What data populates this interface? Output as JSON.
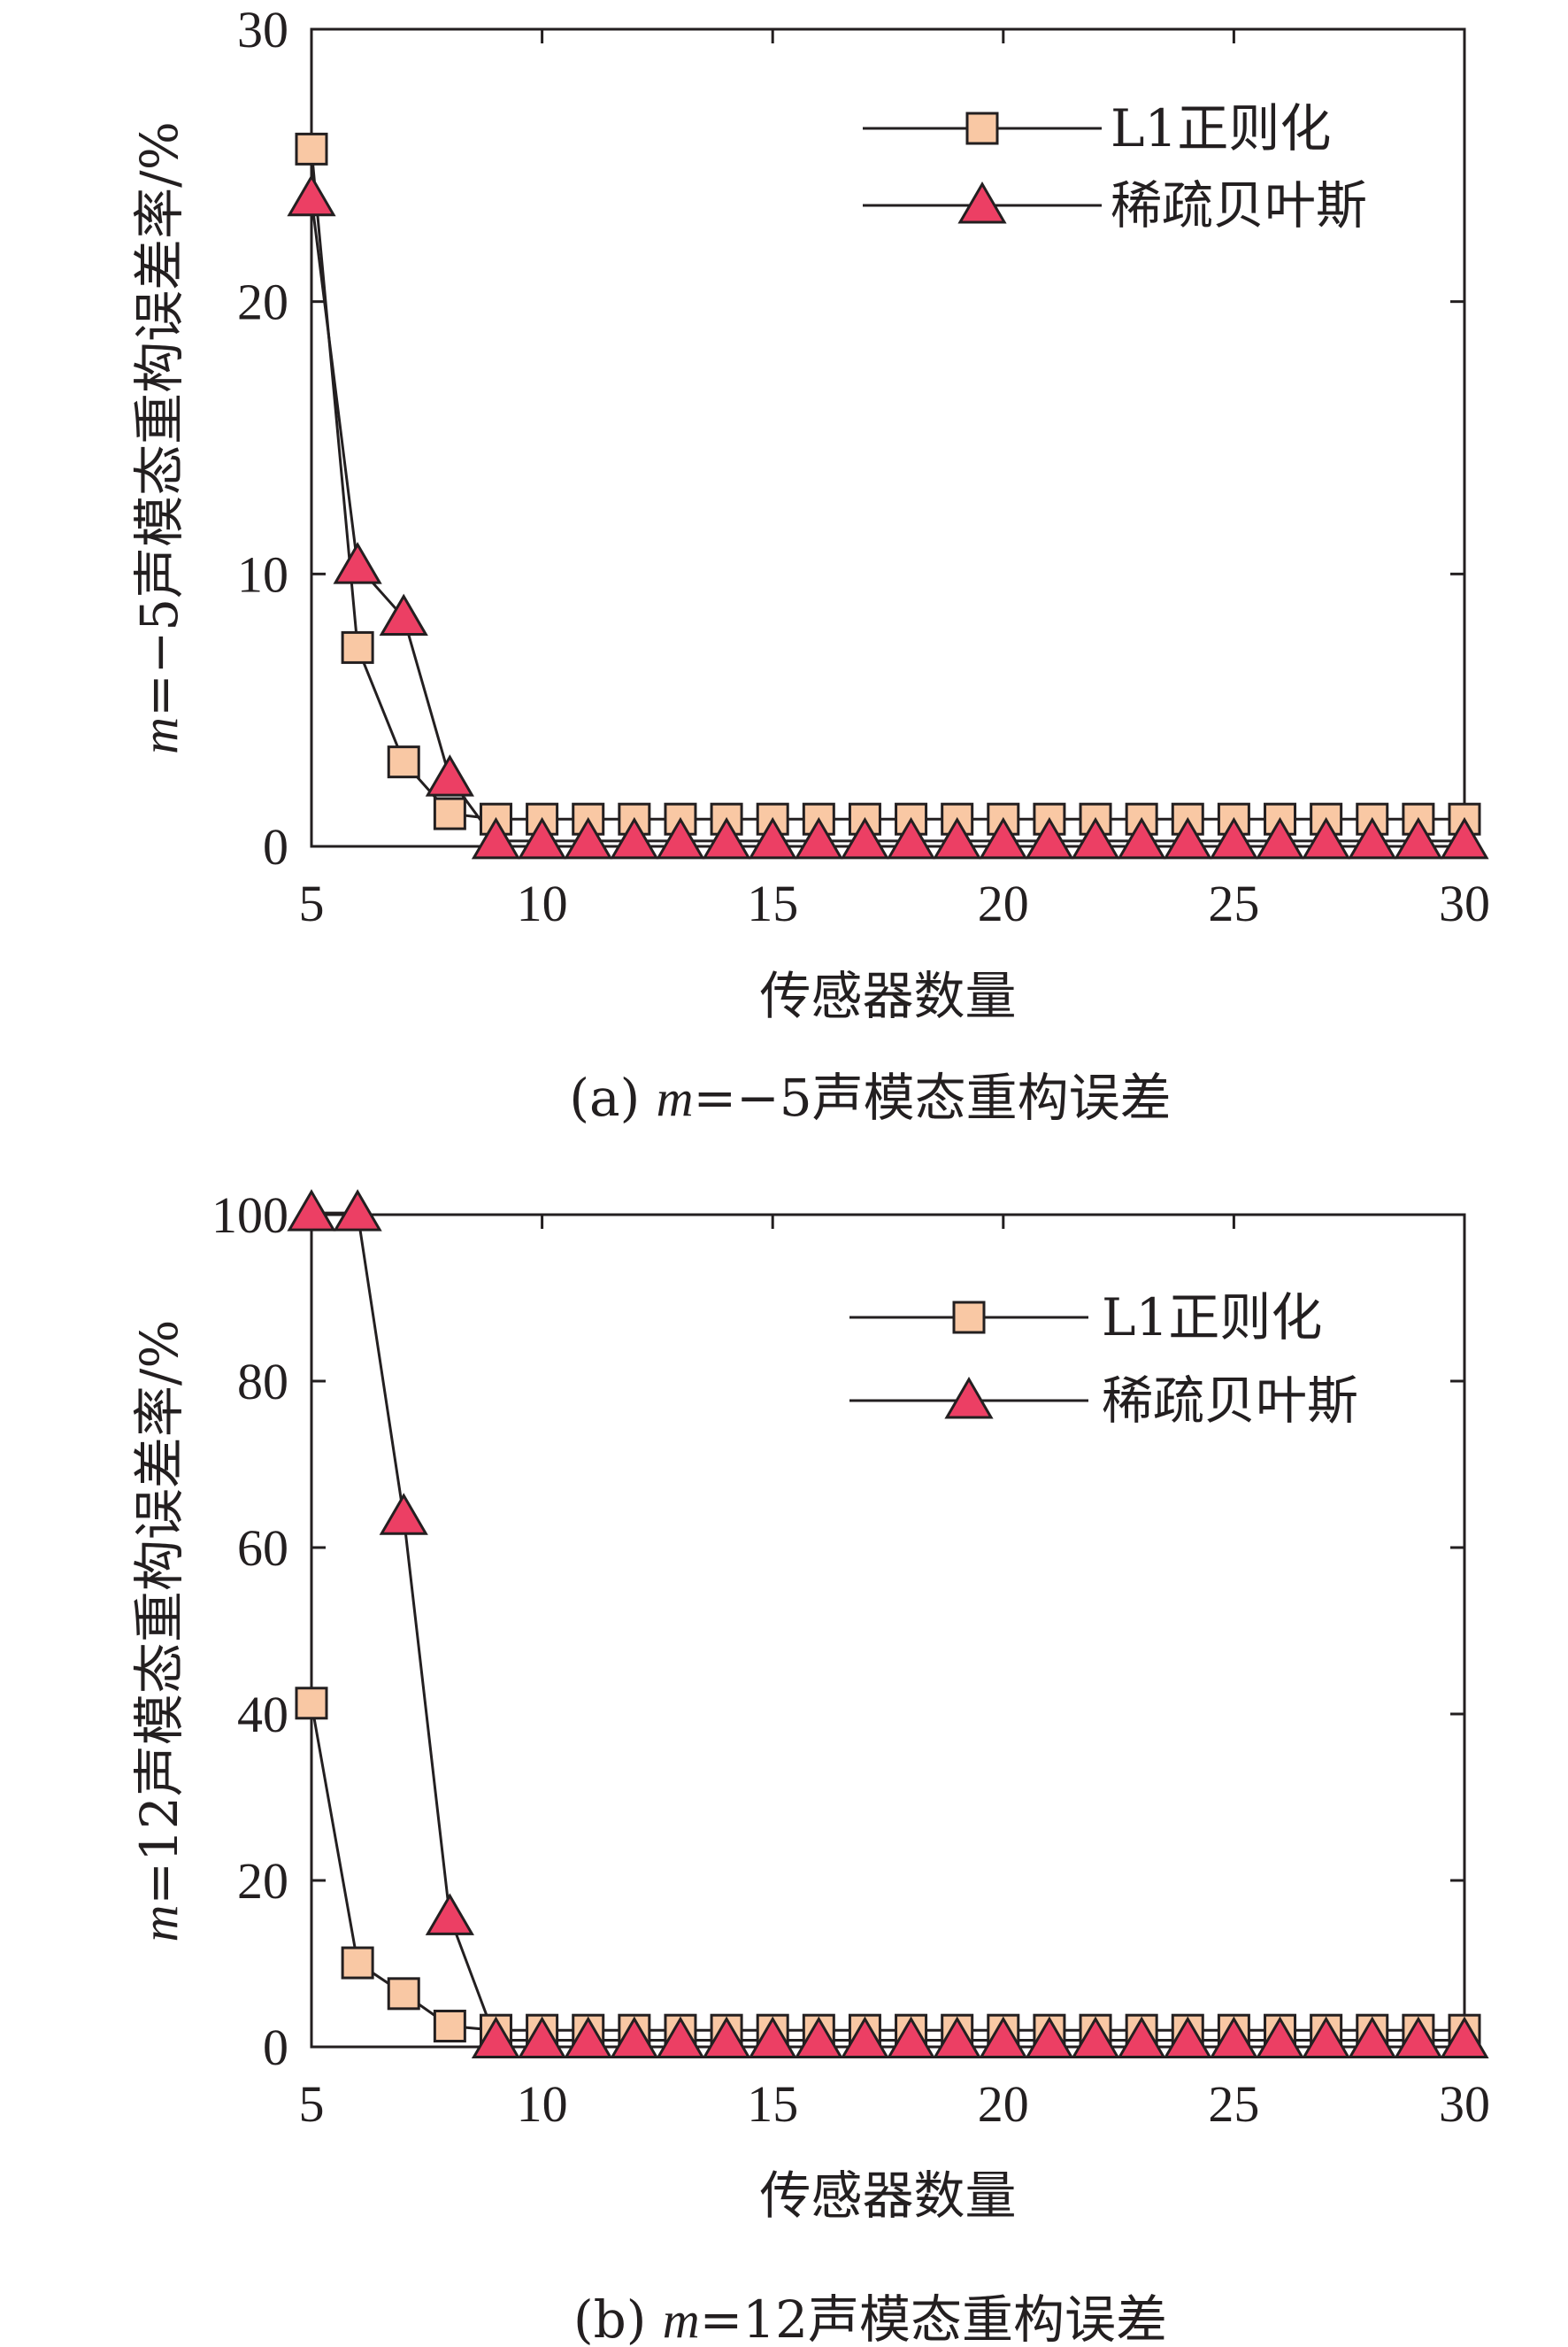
{
  "chart_data": [
    {
      "type": "line",
      "caption": {
        "prefix": "(a) ",
        "var": "m",
        "suffix": "=−5声模态重构误差"
      },
      "ylabel": {
        "var": "m",
        "suffix": "=−5声模态重构误差率/%"
      },
      "xlabel": "传感器数量",
      "xlim": [
        5,
        30
      ],
      "ylim": [
        0,
        30
      ],
      "xticks": [
        5,
        10,
        15,
        20,
        25,
        30
      ],
      "yticks": [
        0,
        10,
        20,
        30
      ],
      "legend_position": "top-right",
      "x": [
        5,
        6,
        7,
        8,
        9,
        10,
        11,
        12,
        13,
        14,
        15,
        16,
        17,
        18,
        19,
        20,
        21,
        22,
        23,
        24,
        25,
        26,
        27,
        28,
        29,
        30
      ],
      "series": [
        {
          "name": "L1正则化",
          "marker": "square",
          "color": "#f9c8a4",
          "values": [
            25.6,
            7.3,
            3.1,
            1.2,
            1.0,
            1.0,
            1.0,
            1.0,
            1.0,
            1.0,
            1.0,
            1.0,
            1.0,
            1.0,
            1.0,
            1.0,
            1.0,
            1.0,
            1.0,
            1.0,
            1.0,
            1.0,
            1.0,
            1.0,
            1.0,
            1.0
          ]
        },
        {
          "name": "稀疏贝叶斯",
          "marker": "triangle",
          "color": "#ec3f64",
          "values": [
            23.8,
            10.3,
            8.4,
            2.5,
            0.2,
            0.2,
            0.2,
            0.2,
            0.2,
            0.2,
            0.2,
            0.2,
            0.2,
            0.2,
            0.2,
            0.2,
            0.2,
            0.2,
            0.2,
            0.2,
            0.2,
            0.2,
            0.2,
            0.2,
            0.2,
            0.2
          ]
        }
      ]
    },
    {
      "type": "line",
      "caption": {
        "prefix": "(b) ",
        "var": "m",
        "suffix": "=12声模态重构误差"
      },
      "ylabel": {
        "var": "m",
        "suffix": "=12声模态重构误差率/%"
      },
      "xlabel": "传感器数量",
      "xlim": [
        5,
        30
      ],
      "ylim": [
        0,
        100
      ],
      "xticks": [
        5,
        10,
        15,
        20,
        25,
        30
      ],
      "yticks": [
        0,
        20,
        40,
        60,
        80,
        100
      ],
      "legend_position": "top-right",
      "x": [
        5,
        6,
        7,
        8,
        9,
        10,
        11,
        12,
        13,
        14,
        15,
        16,
        17,
        18,
        19,
        20,
        21,
        22,
        23,
        24,
        25,
        26,
        27,
        28,
        29,
        30
      ],
      "series": [
        {
          "name": "L1正则化",
          "marker": "square",
          "color": "#f9c8a4",
          "values": [
            41.3,
            10.1,
            6.4,
            2.5,
            2.0,
            2.0,
            2.0,
            2.0,
            2.0,
            2.0,
            2.0,
            2.0,
            2.0,
            2.0,
            2.0,
            2.0,
            2.0,
            2.0,
            2.0,
            2.0,
            2.0,
            2.0,
            2.0,
            2.0,
            2.0,
            2.0
          ]
        },
        {
          "name": "稀疏贝叶斯",
          "marker": "triangle",
          "color": "#ec3f64",
          "values": [
            100.2,
            100.2,
            63.7,
            15.6,
            0.8,
            0.8,
            0.8,
            0.8,
            0.8,
            0.8,
            0.8,
            0.8,
            0.8,
            0.8,
            0.8,
            0.8,
            0.8,
            0.8,
            0.8,
            0.8,
            0.8,
            0.8,
            0.8,
            0.8,
            0.8,
            0.8
          ]
        }
      ]
    }
  ]
}
